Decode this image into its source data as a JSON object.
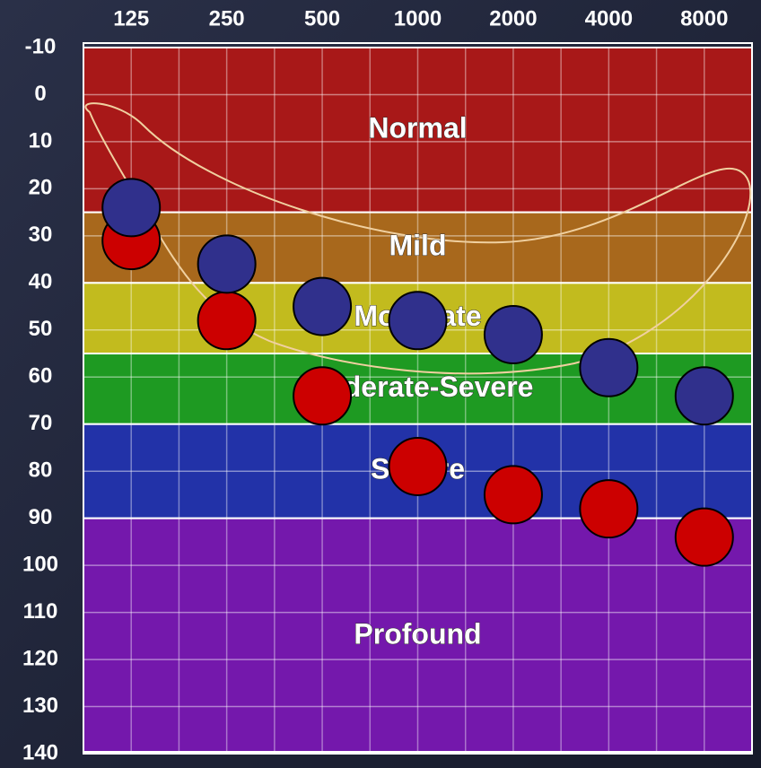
{
  "chart_data": {
    "type": "scatter",
    "categories": [
      "125",
      "250",
      "500",
      "1000",
      "2000",
      "4000",
      "8000"
    ],
    "ylim": [
      -10,
      140
    ],
    "yticks": [
      -10,
      0,
      10,
      20,
      30,
      40,
      50,
      60,
      70,
      80,
      90,
      100,
      110,
      120,
      130,
      140
    ],
    "y_inverted": true,
    "grid": true,
    "bands": [
      {
        "label": "Normal",
        "from": -10,
        "to": 25,
        "color": "#a81818"
      },
      {
        "label": "Mild",
        "from": 25,
        "to": 40,
        "color": "#a8681c"
      },
      {
        "label": "Moderate",
        "from": 40,
        "to": 55,
        "color": "#c2bb1e"
      },
      {
        "label": "Moderate-Severe",
        "from": 55,
        "to": 70,
        "color": "#1e9a22"
      },
      {
        "label": "Severe",
        "from": 70,
        "to": 90,
        "color": "#2232a8"
      },
      {
        "label": "Profound",
        "from": 90,
        "to": 140,
        "color": "#7418ac"
      }
    ],
    "series": [
      {
        "color": "#cc0000",
        "values": [
          31,
          48,
          64,
          79,
          85,
          88,
          94
        ]
      },
      {
        "color": "#30308c",
        "values": [
          24,
          36,
          45,
          48,
          51,
          58,
          64
        ]
      }
    ]
  }
}
